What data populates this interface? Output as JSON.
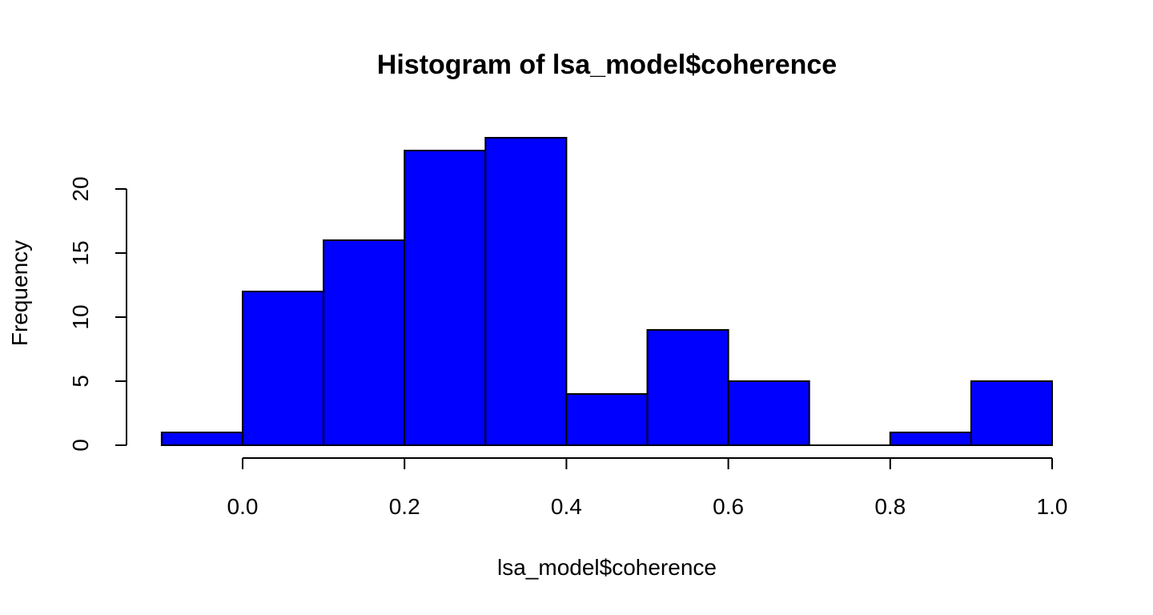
{
  "chart_data": {
    "type": "bar",
    "title": "Histogram of lsa_model$coherence",
    "xlabel": "lsa_model$coherence",
    "ylabel": "Frequency",
    "bins": [
      {
        "start": -0.1,
        "end": 0.0,
        "count": 1
      },
      {
        "start": 0.0,
        "end": 0.1,
        "count": 12
      },
      {
        "start": 0.1,
        "end": 0.2,
        "count": 16
      },
      {
        "start": 0.2,
        "end": 0.3,
        "count": 23
      },
      {
        "start": 0.3,
        "end": 0.4,
        "count": 24
      },
      {
        "start": 0.4,
        "end": 0.5,
        "count": 4
      },
      {
        "start": 0.5,
        "end": 0.6,
        "count": 9
      },
      {
        "start": 0.6,
        "end": 0.7,
        "count": 5
      },
      {
        "start": 0.7,
        "end": 0.8,
        "count": 0
      },
      {
        "start": 0.8,
        "end": 0.9,
        "count": 1
      },
      {
        "start": 0.9,
        "end": 1.0,
        "count": 5
      }
    ],
    "xlim": [
      -0.1,
      1.0
    ],
    "ylim": [
      0,
      24
    ],
    "x_ticks": [
      {
        "value": 0.0,
        "label": "0.0"
      },
      {
        "value": 0.2,
        "label": "0.2"
      },
      {
        "value": 0.4,
        "label": "0.4"
      },
      {
        "value": 0.6,
        "label": "0.6"
      },
      {
        "value": 0.8,
        "label": "0.8"
      },
      {
        "value": 1.0,
        "label": "1.0"
      }
    ],
    "y_ticks": [
      {
        "value": 0,
        "label": "0"
      },
      {
        "value": 5,
        "label": "5"
      },
      {
        "value": 10,
        "label": "10"
      },
      {
        "value": 15,
        "label": "15"
      },
      {
        "value": 20,
        "label": "20"
      }
    ],
    "bar_color": "#0000ff",
    "bar_border_color": "#000000",
    "grid": false,
    "legend": "none"
  }
}
